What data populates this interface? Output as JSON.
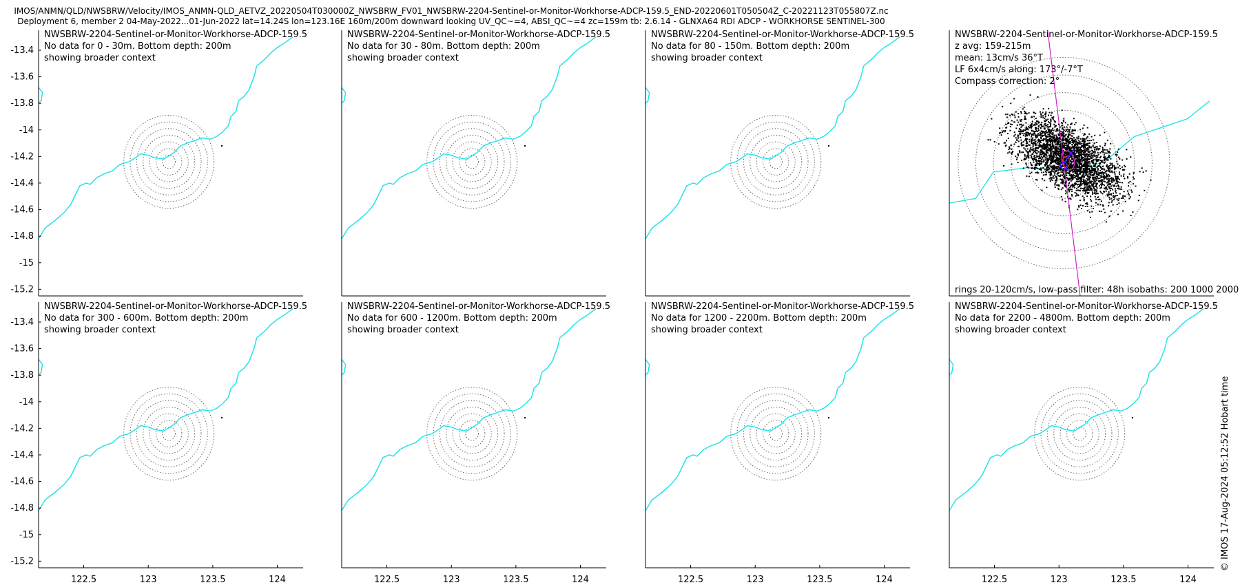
{
  "header": {
    "line1": "IMOS/ANMN/QLD/NWSBRW/Velocity/IMOS_ANMN-QLD_AETVZ_20220504T030000Z_NWSBRW_FV01_NWSBRW-2204-Sentinel-or-Monitor-Workhorse-ADCP-159.5_END-20220601T050504Z_C-20221123T055807Z.nc",
    "line2": "Deployment 6, member 2 04-May-2022...01-Jun-2022 lat=14.24S lon=123.16E 160m/200m downward looking UV_QC~=4, ABSI_QC~=4 zc=159m tb: 2.6.14 - GLNXA64 RDI ADCP - WORKHORSE SENTINEL-300"
  },
  "copyright": "© IMOS 17-Aug-2024 05:12:52 Hobart time",
  "colors": {
    "coast": "#22e3e6",
    "rings": "#555555",
    "scatter": "#000000",
    "major_axis": "#cc22cc",
    "mean_vector": "#1a1aff",
    "ellipse": "#dd2222"
  },
  "chart_data": {
    "type": "scatter",
    "axes": {
      "xlim": [
        122.15,
        124.2
      ],
      "ylim": [
        -15.25,
        -13.25
      ],
      "xticks": [
        122.5,
        123,
        123.5,
        124
      ],
      "xtick_labels": [
        "122.5",
        "123",
        "123.5",
        "124"
      ],
      "yticks": [
        -13.4,
        -13.6,
        -13.8,
        -14,
        -14.2,
        -14.4,
        -14.6,
        -14.8,
        -15,
        -15.2
      ],
      "ytick_labels": [
        "-13.4",
        "-13.6",
        "-13.8",
        "-14",
        "-14.2",
        "-14.4",
        "-14.6",
        "-14.8",
        "-15",
        "-15.2"
      ]
    },
    "station": {
      "lon": 123.16,
      "lat": -14.24
    },
    "coastline": [
      [
        122.15,
        -14.82
      ],
      [
        122.2,
        -14.74
      ],
      [
        122.28,
        -14.68
      ],
      [
        122.35,
        -14.62
      ],
      [
        122.4,
        -14.56
      ],
      [
        122.43,
        -14.5
      ],
      [
        122.47,
        -14.42
      ],
      [
        122.52,
        -14.4
      ],
      [
        122.55,
        -14.41
      ],
      [
        122.6,
        -14.36
      ],
      [
        122.66,
        -14.33
      ],
      [
        122.72,
        -14.31
      ],
      [
        122.78,
        -14.26
      ],
      [
        122.85,
        -14.24
      ],
      [
        122.9,
        -14.21
      ],
      [
        122.94,
        -14.18
      ],
      [
        123.0,
        -14.19
      ],
      [
        123.05,
        -14.21
      ],
      [
        123.12,
        -14.22
      ],
      [
        123.2,
        -14.17
      ],
      [
        123.25,
        -14.12
      ],
      [
        123.3,
        -14.1
      ],
      [
        123.36,
        -14.08
      ],
      [
        123.42,
        -14.06
      ],
      [
        123.48,
        -14.07
      ],
      [
        123.53,
        -14.05
      ],
      [
        123.57,
        -14.02
      ],
      [
        123.62,
        -13.97
      ],
      [
        123.64,
        -13.9
      ],
      [
        123.68,
        -13.86
      ],
      [
        123.7,
        -13.78
      ],
      [
        123.74,
        -13.75
      ],
      [
        123.78,
        -13.7
      ],
      [
        123.82,
        -13.6
      ],
      [
        123.84,
        -13.52
      ],
      [
        123.9,
        -13.47
      ],
      [
        123.95,
        -13.42
      ],
      [
        124.0,
        -13.38
      ],
      [
        124.05,
        -13.35
      ],
      [
        124.12,
        -13.3
      ]
    ],
    "coast_detail": [
      [
        122.15,
        -13.68
      ],
      [
        122.18,
        -13.72
      ],
      [
        122.17,
        -13.78
      ],
      [
        122.15,
        -13.8
      ]
    ],
    "rings_deg": [
      0.05,
      0.1,
      0.15,
      0.2,
      0.25,
      0.3,
      0.35
    ],
    "panels": [
      {
        "title": "NWSBRW-2204-Sentinel-or-Monitor-Workhorse-ADCP-159.5",
        "message": "No data for 0 - 30m. Bottom depth: 200m",
        "note": "showing broader context"
      },
      {
        "title": "NWSBRW-2204-Sentinel-or-Monitor-Workhorse-ADCP-159.5",
        "message": "No data for 30 - 80m. Bottom depth: 200m",
        "note": "showing broader context"
      },
      {
        "title": "NWSBRW-2204-Sentinel-or-Monitor-Workhorse-ADCP-159.5",
        "message": "No data for 80 - 150m. Bottom depth: 200m",
        "note": "showing broader context"
      },
      {
        "title": "NWSBRW-2204-Sentinel-or-Monitor-Workhorse-ADCP-159.5",
        "z_avg": "z avg: 159-215m",
        "mean": "mean: 13cm/s 36°T",
        "lf": "LF 6x4cm/s along: 173°/-7°T",
        "compass": "Compass correction: 2°",
        "footer": "rings 20-120cm/s, low-pass filter: 48h isobaths: 200 1000 2000",
        "scatter_cloud": {
          "center_cm_s": [
            5,
            5
          ],
          "major_axis_cm_s": 60,
          "minor_axis_cm_s": 28,
          "axis_bearing_deg_T": 123,
          "n_points": 3000,
          "rings_cm_s": [
            20,
            40,
            60,
            80,
            100,
            120
          ]
        },
        "current_rose": {
          "xlim_cm_s": [
            -130,
            170
          ],
          "ylim_cm_s": [
            -150,
            150
          ],
          "coast_cm_s": [
            [
              -130,
              -45
            ],
            [
              -100,
              -40
            ],
            [
              -80,
              -10
            ],
            [
              -40,
              -5
            ],
            [
              20,
              -10
            ],
            [
              50,
              5
            ],
            [
              80,
              30
            ],
            [
              110,
              40
            ],
            [
              140,
              50
            ],
            [
              165,
              70
            ]
          ],
          "major_axis_bearing_deg_T": 173,
          "mean_vector_bearing_deg_T": 36
        }
      },
      {
        "title": "NWSBRW-2204-Sentinel-or-Monitor-Workhorse-ADCP-159.5",
        "message": "No data for 300 - 600m. Bottom depth: 200m",
        "note": "showing broader context"
      },
      {
        "title": "NWSBRW-2204-Sentinel-or-Monitor-Workhorse-ADCP-159.5",
        "message": "No data for 600 - 1200m. Bottom depth: 200m",
        "note": "showing broader context"
      },
      {
        "title": "NWSBRW-2204-Sentinel-or-Monitor-Workhorse-ADCP-159.5",
        "message": "No data for 1200 - 2200m. Bottom depth: 200m",
        "note": "showing broader context"
      },
      {
        "title": "NWSBRW-2204-Sentinel-or-Monitor-Workhorse-ADCP-159.5",
        "message": "No data for 2200 - 4800m. Bottom depth: 200m",
        "note": "showing broader context"
      }
    ]
  }
}
